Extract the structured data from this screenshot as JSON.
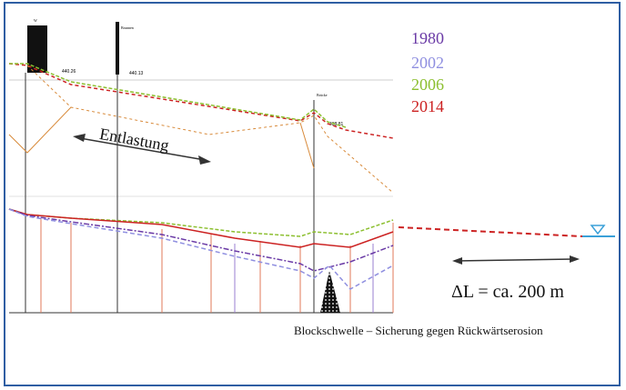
{
  "legend": {
    "items": [
      {
        "year": "1980",
        "color": "#6a3aa6"
      },
      {
        "year": "2002",
        "color": "#8f8fe0"
      },
      {
        "year": "2006",
        "color": "#8cbf2f"
      },
      {
        "year": "2014",
        "color": "#cc2222"
      }
    ]
  },
  "annotations": {
    "relief": "Entlastung",
    "delta_l": "ΔL = ca. 200 m",
    "caption": "Blockschwelle – Sicherung gegen Rückwärtserosion"
  },
  "profile_labels": {
    "elev_a": "440.26",
    "elev_b": "440.13",
    "elev_c": "438.81",
    "tower_a": "W",
    "tower_b": "Brunnen",
    "tower_c": "Brücke"
  },
  "colors": {
    "frame": "#2f5ea3",
    "water": "#3aa0d8",
    "arrow": "#333333"
  }
}
